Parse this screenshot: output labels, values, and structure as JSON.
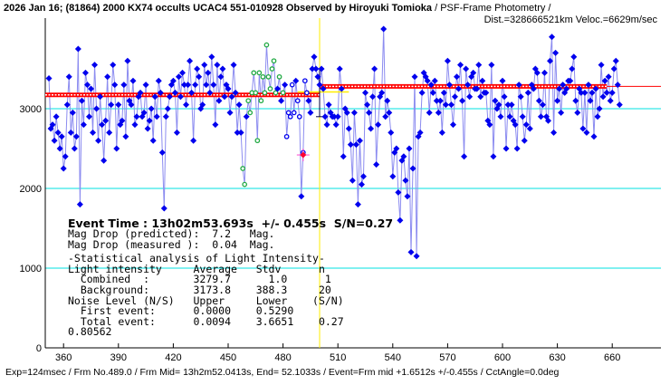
{
  "chart_data": {
    "type": "line",
    "title_bold": "2026 Jan 16; (81864) 2000 KX74 occults UCAC4 551-010928 Observed by Hiroyuki Tomioka",
    "title_rest": " / PSF-Frame Photometry /",
    "subtitle": "Dist.=328666521km Veloc.=6629m/sec",
    "xlabel": "",
    "ylabel": "",
    "xlim": [
      350,
      690
    ],
    "ylim": [
      0,
      4150
    ],
    "x_ticks": [
      360,
      390,
      420,
      450,
      480,
      510,
      540,
      570,
      600,
      630,
      660
    ],
    "y_ticks": [
      0,
      1000,
      2000,
      3000
    ],
    "x_start": 352,
    "values": [
      3380,
      2750,
      2800,
      2600,
      2900,
      2700,
      2500,
      2650,
      2250,
      2400,
      3050,
      3400,
      2700,
      2950,
      2500,
      2650,
      3750,
      1800,
      3100,
      2800,
      3450,
      3300,
      2900,
      3250,
      2700,
      3550,
      3000,
      2600,
      3150,
      2800,
      2350,
      2850,
      3400,
      2700,
      3050,
      3550,
      3300,
      2500,
      3050,
      2800,
      2850,
      3300,
      2650,
      3600,
      3100,
      3050,
      3350,
      2800,
      2900,
      3150,
      3200,
      2900,
      2950,
      3300,
      2750,
      2850,
      3000,
      2600,
      3150,
      2900,
      3350,
      3200,
      2450,
      1750,
      2900,
      3000,
      3150,
      3300,
      3350,
      3200,
      2700,
      3400,
      3150,
      3450,
      3300,
      3050,
      3300,
      3600,
      3200,
      2600,
      3300,
      3500,
      3400,
      3000,
      3050,
      3550,
      3300,
      3450,
      3200,
      3650,
      3300,
      2800,
      3550,
      3100,
      3400,
      3500,
      3150,
      3300,
      3250,
      2950,
      3150,
      3550,
      3200,
      2700,
      3050,
      2700,
      2250,
      2050,
      2900,
      3100,
      2950,
      3200,
      3450,
      3200,
      2600,
      3450,
      3100,
      3400,
      3200,
      3800,
      3400,
      3250,
      3500,
      3600,
      3200,
      3250,
      3400,
      3100,
      3200,
      3300,
      2650,
      2950,
      2900,
      3300,
      2950,
      3350,
      3100,
      2900,
      1900,
      2450,
      3350,
      3200,
      3100,
      2950,
      3500,
      3650,
      3500,
      3400,
      3300,
      3500,
      3250,
      2900,
      2800,
      3050,
      2950,
      2900,
      2900,
      2800,
      2900,
      3500,
      3250,
      2400,
      3000,
      2950,
      2750,
      2550,
      2100,
      2950,
      2550,
      1800,
      2600,
      2050,
      2150,
      3200,
      3050,
      2950,
      2750,
      3150,
      3500,
      2300,
      2800,
      3150,
      3200,
      4000,
      2900,
      3100,
      2950,
      2700,
      2150,
      2450,
      2500,
      1950,
      1600,
      2350,
      2400,
      2100,
      1900,
      2500,
      1200,
      2250,
      3400,
      1150,
      2650,
      2700,
      3200,
      3450,
      3400,
      3350,
      2950,
      3300,
      3200,
      3350,
      3100,
      2950,
      3100,
      2700,
      3200,
      3050,
      3600,
      3300,
      3050,
      2800,
      3150,
      3400,
      3250,
      3550,
      3100,
      2400,
      3500,
      3300,
      3150,
      3400,
      3450,
      3250,
      3250,
      3550,
      3150,
      3350,
      3200,
      3200,
      2850,
      2800,
      3550,
      2400,
      3100,
      3000,
      3050,
      2900,
      3350,
      3150,
      2500,
      3050,
      2900,
      3050,
      2850,
      2800,
      2500,
      3300,
      3150,
      2900,
      2600,
      2800,
      3200,
      2750,
      3300,
      3250,
      3500,
      3450,
      3100,
      2900,
      3050,
      3450,
      2900,
      2850,
      3600,
      3900,
      2700,
      3700,
      3100,
      3250,
      2950,
      3300,
      3200,
      3250,
      3350,
      3350,
      3500,
      3650,
      3100,
      2950,
      3250,
      3200,
      2750,
      3200,
      2700,
      3300,
      3100,
      3200,
      2650,
      3250,
      2900,
      3000,
      3550,
      3150,
      3350,
      3200,
      3400,
      3100,
      3200,
      3500,
      3600,
      3300,
      3050
    ],
    "green_frames": [
      458,
      459,
      461,
      462,
      463,
      464,
      465,
      466,
      467,
      468,
      469,
      470,
      471,
      472,
      473,
      474,
      475,
      476,
      478,
      480
    ],
    "hollow_frames": [
      482,
      483,
      484,
      485,
      486,
      488,
      489,
      491,
      492,
      493
    ],
    "event_point": {
      "frame": 491,
      "value": 2420
    },
    "event_frame": 500,
    "background_level": 3173.8,
    "combined_level": 3279.7,
    "event_error_bar": [
      2900,
      3500
    ],
    "colors": {
      "points": "#0000ee",
      "line": "#8c8cf0",
      "green": "#22aa44",
      "level": "#ff0000",
      "grid": "#00e0e0",
      "event": "#ffee00",
      "marker": "#ff0033"
    }
  },
  "stats": {
    "event_time": "Event Time : 13h02m53.693s  +/- 0.455s  S/N=0.27",
    "mag_pred": "Mag Drop (predicted):  7.2   Mag.",
    "mag_meas": "Mag Drop (measured ):  0.04  Mag.",
    "heading": "-Statistical analysis of Light Intensity-",
    "header_row": "Light intensity     Average   Stdv      n",
    "combined_row": "  Combined  :       3279.7      1.0      1",
    "background_row": "  Background:       3173.8    388.3     20",
    "noise_row": "Noise Level (N/S)   Upper     Lower    (S/N)",
    "first_row": "  First event:      0.0000    0.5290",
    "total_row": "  Total event:      0.0094    3.6651    0.27",
    "extra": "0.80562"
  },
  "footer": "Exp=124msec / Frm No.489.0 / Frm Mid= 13h2m52.0413s,  End= 52.1033s / Event=Frm mid +1.6512s +/-0.455s / CctAngle=0.0deg"
}
